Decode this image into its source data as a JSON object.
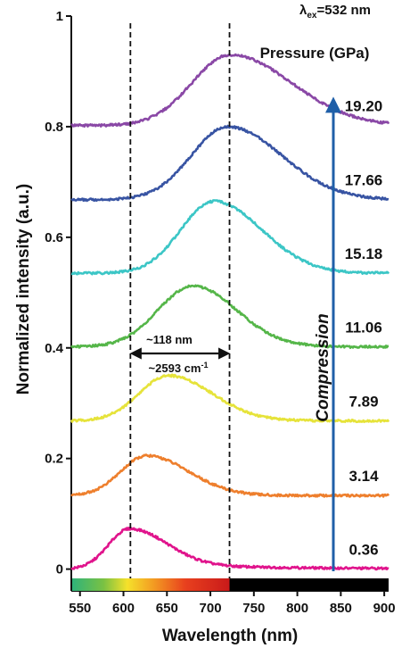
{
  "chart_data": {
    "type": "line",
    "title": "",
    "xlabel": "Wavelength (nm)",
    "ylabel": "Normalized intensity (a.u.)",
    "xlim": [
      540,
      905
    ],
    "ylim": [
      -0.02,
      1.0
    ],
    "xticks": [
      "550",
      "600",
      "650",
      "700",
      "750",
      "800",
      "850",
      "900"
    ],
    "yticks": [
      "0",
      "0.2",
      "0.4",
      "0.6",
      "0.8",
      "1"
    ],
    "excitation_label": "λ",
    "excitation_sub": "ex",
    "excitation_value": "=532 nm",
    "pressure_header": "Pressure (GPa)",
    "compression_label": "Compression",
    "fwhm_nm_label": "~118 nm",
    "fwhm_cm_label": "~2593 cm",
    "fwhm_cm_sup": "-1",
    "dashed_lines_x": [
      608,
      722
    ],
    "fwhm_arrow_x": [
      608,
      722
    ],
    "series": [
      {
        "name": "0.36",
        "color": "#e0148c",
        "baseline": 0.0,
        "peak_x": 607,
        "peak_y": 0.073,
        "w_left": 24,
        "w_right": 42,
        "tail": 0.01
      },
      {
        "name": "3.14",
        "color": "#ee7f2d",
        "baseline": 0.133,
        "peak_x": 627,
        "peak_y": 0.205,
        "w_left": 30,
        "w_right": 48,
        "tail": 0.0
      },
      {
        "name": "7.89",
        "color": "#e6e33a",
        "baseline": 0.268,
        "peak_x": 652,
        "peak_y": 0.35,
        "w_left": 34,
        "w_right": 50,
        "tail": 0.0
      },
      {
        "name": "11.06",
        "color": "#55b649",
        "baseline": 0.402,
        "peak_x": 680,
        "peak_y": 0.512,
        "w_left": 40,
        "w_right": 50,
        "tail": 0.0
      },
      {
        "name": "15.18",
        "color": "#3cc6c6",
        "baseline": 0.535,
        "peak_x": 704,
        "peak_y": 0.665,
        "w_left": 38,
        "w_right": 55,
        "tail": 0.0
      },
      {
        "name": "17.66",
        "color": "#3854a3",
        "baseline": 0.668,
        "peak_x": 720,
        "peak_y": 0.8,
        "w_left": 42,
        "w_right": 62,
        "tail": 0.0
      },
      {
        "name": "19.20",
        "color": "#8a48a6",
        "baseline": 0.802,
        "peak_x": 723,
        "peak_y": 0.93,
        "w_left": 44,
        "w_right": 70,
        "tail": 0.0
      }
    ],
    "colors": {
      "compression_arrow": "#1f5fa8",
      "fwhm_arrow": "#111111",
      "dashed_line": "#111111"
    }
  }
}
